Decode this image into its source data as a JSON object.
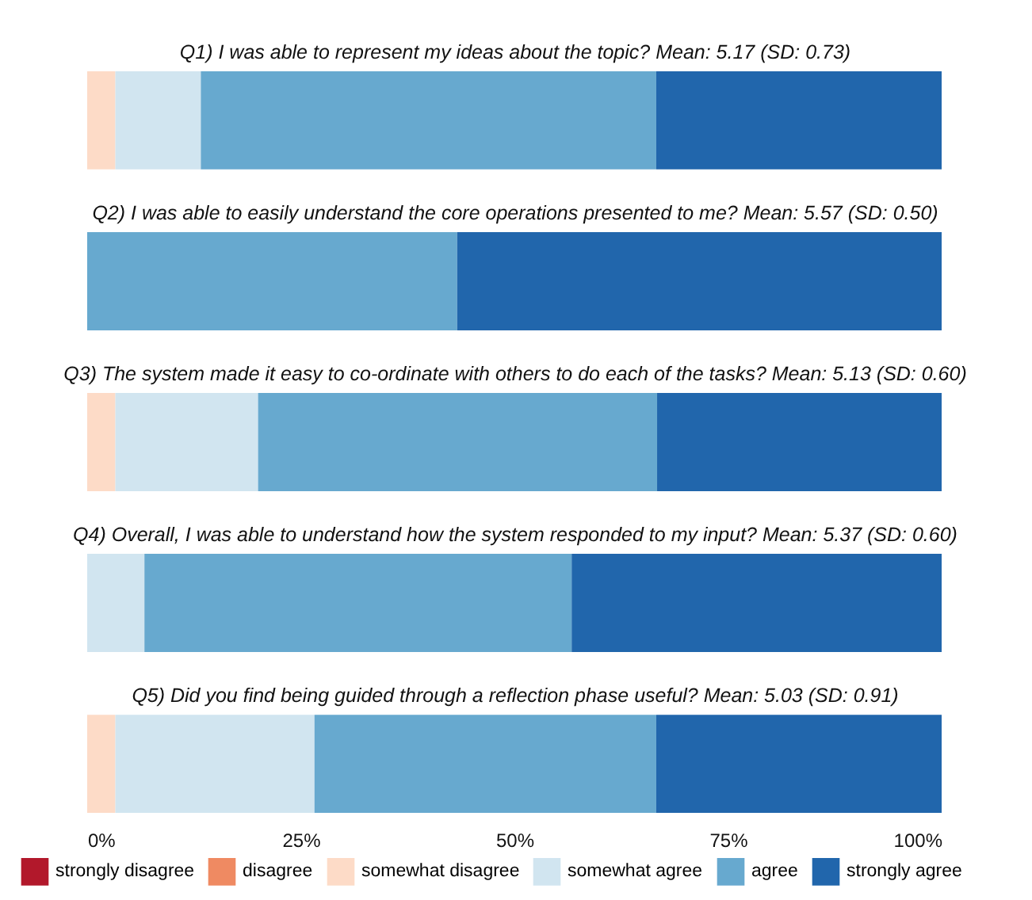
{
  "chart_data": {
    "type": "bar",
    "orientation": "horizontal",
    "stacked": true,
    "categories": [
      "Q1) I was able to represent my ideas about the topic? Mean: 5.17 (SD: 0.73)",
      "Q2) I was able to easily understand the core operations presented to me? Mean: 5.57 (SD: 0.50)",
      "Q3) The system made it easy to co-ordinate with others to do each of the tasks? Mean: 5.13 (SD: 0.60)",
      "Q4) Overall, I was able to understand how the system responded to my input? Mean: 5.37 (SD: 0.60)",
      "Q5) Did you find being guided through a reflection phase useful? Mean: 5.03 (SD: 0.91)"
    ],
    "xlim": [
      0,
      100
    ],
    "xticks": [
      {
        "value": 0,
        "label": "0%"
      },
      {
        "value": 25,
        "label": "25%"
      },
      {
        "value": 50,
        "label": "50%"
      },
      {
        "value": 75,
        "label": "75%"
      },
      {
        "value": 100,
        "label": "100%"
      }
    ],
    "legend": "bottom",
    "series": [
      {
        "name": "strongly disagree",
        "color": "#b2182b",
        "values": [
          0,
          0,
          0,
          0,
          0
        ]
      },
      {
        "name": "disagree",
        "color": "#ef8a62",
        "values": [
          0,
          0,
          0,
          0,
          0
        ]
      },
      {
        "name": "somewhat disagree",
        "color": "#fddbc7",
        "values": [
          3.3,
          0,
          3.3,
          0,
          3.3
        ]
      },
      {
        "name": "somewhat agree",
        "color": "#d1e5f0",
        "values": [
          10.0,
          0,
          16.7,
          6.7,
          23.3
        ]
      },
      {
        "name": "agree",
        "color": "#67a9cf",
        "values": [
          53.3,
          43.3,
          46.7,
          50.0,
          40.0
        ]
      },
      {
        "name": "strongly agree",
        "color": "#2166ac",
        "values": [
          33.4,
          56.7,
          33.3,
          43.3,
          33.4
        ]
      }
    ]
  }
}
